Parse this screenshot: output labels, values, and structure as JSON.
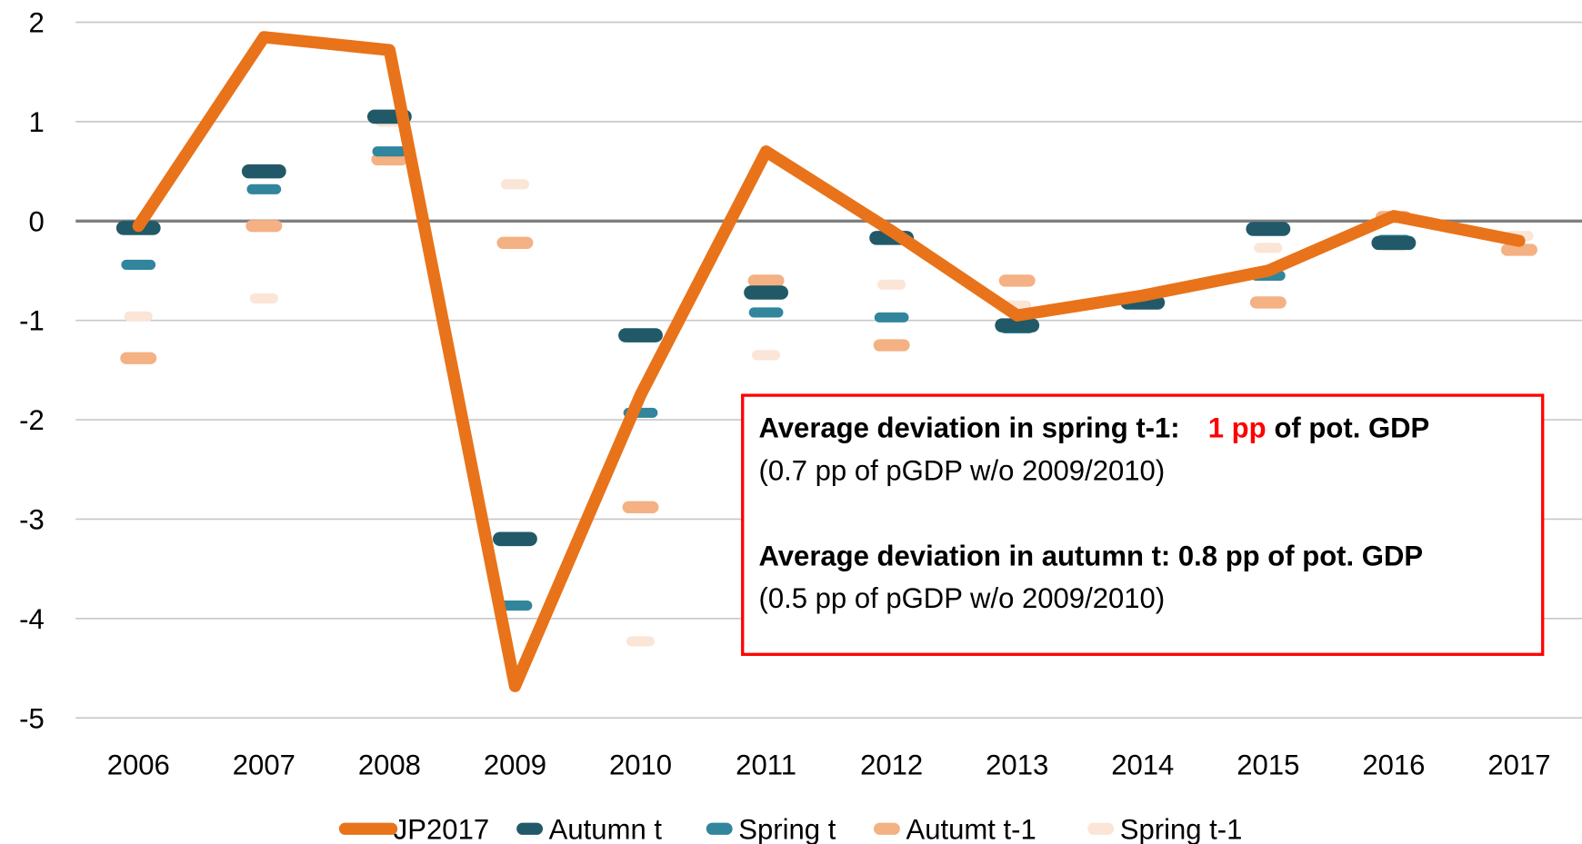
{
  "chart_data": {
    "type": "line",
    "categories": [
      "2006",
      "2007",
      "2008",
      "2009",
      "2010",
      "2011",
      "2012",
      "2013",
      "2014",
      "2015",
      "2016",
      "2017"
    ],
    "series": [
      {
        "name": "JP2017",
        "color": "#e8731a",
        "style": "line",
        "values": [
          -0.05,
          1.85,
          1.72,
          -4.68,
          -1.75,
          0.7,
          -0.1,
          -0.95,
          -0.75,
          -0.5,
          0.05,
          -0.2
        ]
      },
      {
        "name": "Autumn t",
        "color": "#215968",
        "style": "dash",
        "values": [
          -0.07,
          0.5,
          1.05,
          -3.2,
          -1.15,
          -0.72,
          -0.17,
          -1.05,
          -0.82,
          -0.08,
          -0.22,
          null
        ]
      },
      {
        "name": "Spring t",
        "color": "#31859c",
        "style": "dash",
        "values": [
          -0.44,
          0.32,
          0.7,
          -3.87,
          -1.93,
          -0.92,
          -0.97,
          -1.08,
          -0.8,
          -0.55,
          -0.19,
          null
        ]
      },
      {
        "name": "Autumt t-1",
        "color": "#f4b183",
        "style": "dash",
        "values": [
          -1.38,
          -0.05,
          0.62,
          -0.22,
          -2.88,
          -0.6,
          -1.25,
          -0.6,
          -0.78,
          -0.82,
          0.04,
          -0.29
        ]
      },
      {
        "name": "Spring t-1",
        "color": "#fbe5d6",
        "style": "dash",
        "values": [
          -0.96,
          -0.78,
          1.0,
          0.37,
          -4.23,
          -1.35,
          -0.64,
          -0.85,
          -0.8,
          -0.27,
          -0.25,
          -0.15
        ]
      }
    ],
    "ylim": [
      -5,
      2
    ],
    "yticks": [
      -5,
      -4,
      -3,
      -2,
      -1,
      0,
      1,
      2
    ],
    "grid": true,
    "legend": "bottom",
    "annotation": {
      "border_color": "#ff0000",
      "highlight_color": "#ff0000",
      "lines": [
        [
          "Average deviation in spring t-1:",
          "1 pp",
          "of pot. GDP"
        ],
        [
          "(0.7 pp of pGDP w/o 2009/2010)"
        ],
        [
          "Average deviation in autumn t: 0.8 pp of pot. GDP"
        ],
        [
          "(0.5 pp of pGDP w/o 2009/2010)"
        ]
      ]
    }
  }
}
